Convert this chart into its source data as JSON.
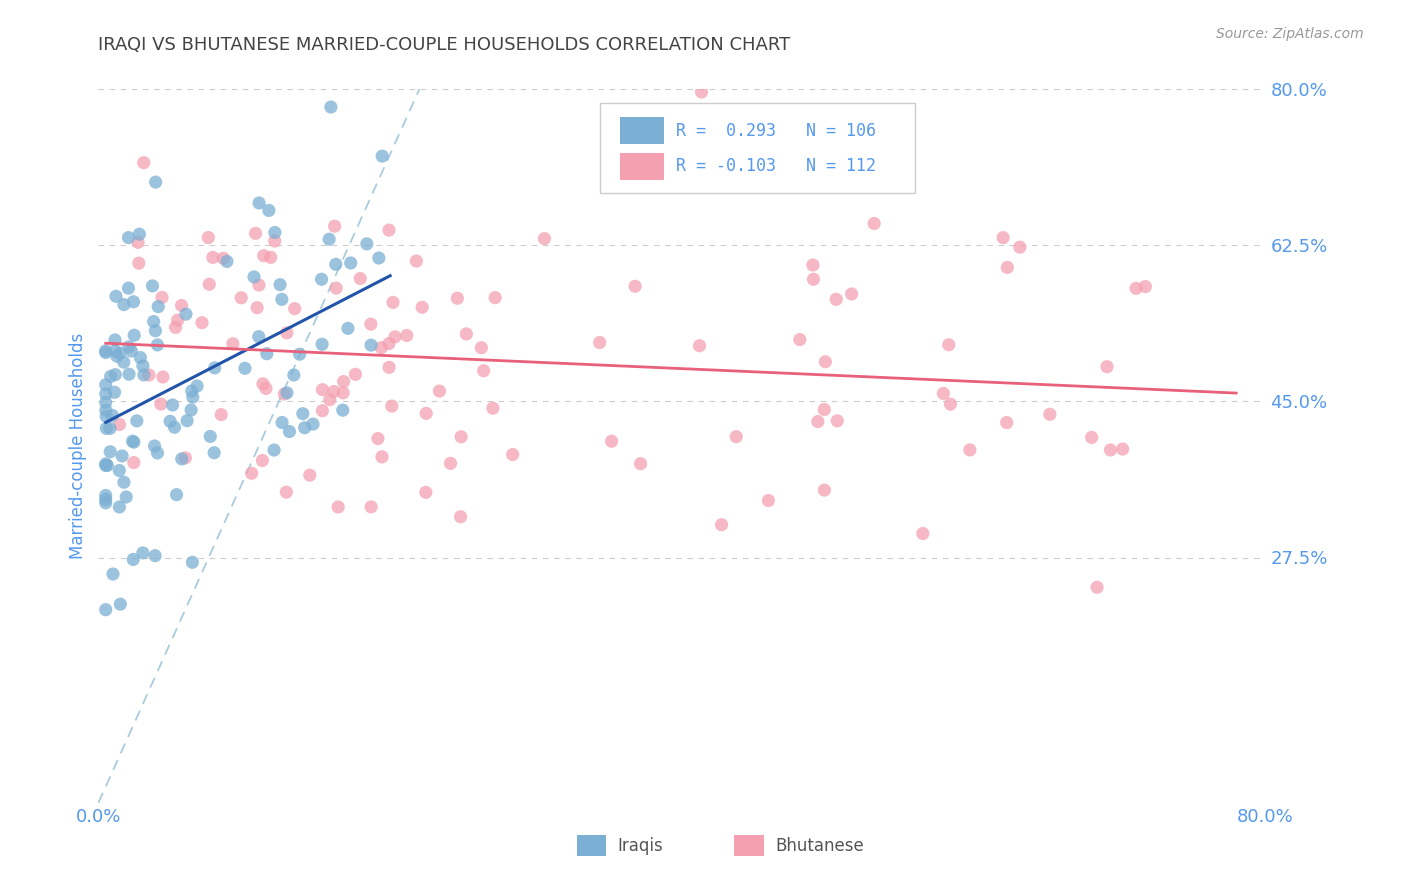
{
  "title": "IRAQI VS BHUTANESE MARRIED-COUPLE HOUSEHOLDS CORRELATION CHART",
  "source_text": "Source: ZipAtlas.com",
  "ylabel": "Married-couple Households",
  "xlim": [
    0.0,
    0.8
  ],
  "ylim": [
    0.0,
    0.8
  ],
  "ytick_labels": [
    "80.0%",
    "62.5%",
    "45.0%",
    "27.5%"
  ],
  "ytick_positions": [
    0.8,
    0.625,
    0.45,
    0.275
  ],
  "color_iraqi": "#7BAFD4",
  "color_bhutanese": "#F4A0B0",
  "color_iraqi_line": "#2255AA",
  "color_bhutanese_line": "#E8607A",
  "color_diagonal": "#AACCDD",
  "color_grid": "#CCCCCC",
  "color_axis_ticks": "#5599EE",
  "color_ylabel": "#5599EE",
  "color_title": "#444444",
  "color_source": "#999999",
  "color_legend_text": "#5599EE",
  "background_color": "#FFFFFF",
  "iraqi_seed": 1234,
  "bhutanese_seed": 5678
}
